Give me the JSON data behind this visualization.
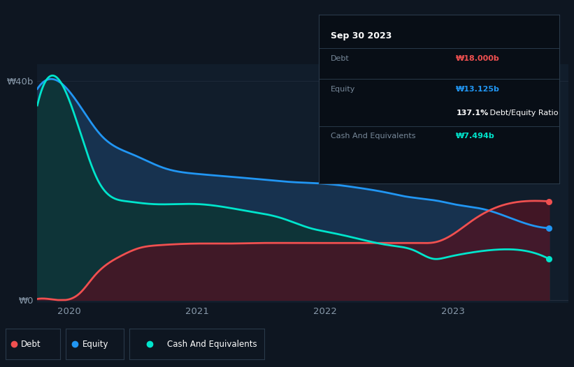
{
  "bg_color": "#0e1621",
  "plot_bg_color": "#111d2b",
  "grid_color": "#253040",
  "equity_x": [
    2019.75,
    2020.08,
    2020.25,
    2020.5,
    2020.75,
    2021.0,
    2021.25,
    2021.5,
    2021.75,
    2022.0,
    2022.25,
    2022.5,
    2022.6,
    2022.75,
    2022.9,
    2023.0,
    2023.25,
    2023.5,
    2023.75
  ],
  "equity_y": [
    38.5,
    35.5,
    30.0,
    26.5,
    24.0,
    23.0,
    22.5,
    22.0,
    21.5,
    21.2,
    20.5,
    19.5,
    19.0,
    18.5,
    18.0,
    17.5,
    16.5,
    14.5,
    13.125
  ],
  "debt_x": [
    2019.75,
    2020.02,
    2020.08,
    2020.2,
    2020.4,
    2020.55,
    2020.7,
    2020.85,
    2021.0,
    2021.25,
    2021.5,
    2021.75,
    2022.0,
    2022.25,
    2022.5,
    2022.75,
    2022.85,
    2023.0,
    2023.15,
    2023.35,
    2023.55,
    2023.75
  ],
  "debt_y": [
    0.2,
    0.3,
    1.2,
    4.5,
    8.0,
    9.5,
    10.0,
    10.2,
    10.3,
    10.3,
    10.4,
    10.4,
    10.4,
    10.4,
    10.4,
    10.4,
    10.5,
    12.0,
    14.5,
    17.0,
    18.0,
    18.0
  ],
  "cash_x": [
    2019.75,
    2020.08,
    2020.22,
    2020.45,
    2020.65,
    2020.85,
    2021.0,
    2021.2,
    2021.4,
    2021.65,
    2021.9,
    2022.0,
    2022.2,
    2022.5,
    2022.7,
    2022.85,
    2022.95,
    2023.1,
    2023.35,
    2023.6,
    2023.75
  ],
  "cash_y": [
    35.5,
    31.0,
    22.0,
    18.0,
    17.5,
    17.5,
    17.5,
    17.0,
    16.2,
    15.0,
    13.0,
    12.5,
    11.5,
    10.0,
    9.0,
    7.5,
    7.8,
    8.5,
    9.2,
    8.8,
    7.494
  ],
  "equity_line_color": "#2196f3",
  "equity_fill_color": "#1a3a5c",
  "debt_line_color": "#f05050",
  "debt_fill_color": "#4a1525",
  "cash_line_color": "#00e5cc",
  "cash_fill_color": "#0d3535",
  "xlim": [
    2019.75,
    2023.9
  ],
  "ylim": [
    -0.5,
    43
  ],
  "xticks": [
    2020,
    2021,
    2022,
    2023
  ],
  "ytick_positions": [
    0,
    40
  ],
  "ytick_labels": [
    "₩0",
    "₩40b"
  ],
  "info_box": {
    "date": "Sep 30 2023",
    "debt_label": "Debt",
    "debt_value": "₩18.000b",
    "debt_color": "#f05050",
    "equity_label": "Equity",
    "equity_value": "₩13.125b",
    "equity_color": "#2196f3",
    "ratio_bold": "137.1%",
    "ratio_rest": " Debt/Equity Ratio",
    "cash_label": "Cash And Equivalents",
    "cash_value": "₩7.494b",
    "cash_color": "#00e5cc"
  },
  "legend": [
    {
      "label": "Debt",
      "color": "#f05050"
    },
    {
      "label": "Equity",
      "color": "#2196f3"
    },
    {
      "label": "Cash And Equivalents",
      "color": "#00e5cc"
    }
  ]
}
